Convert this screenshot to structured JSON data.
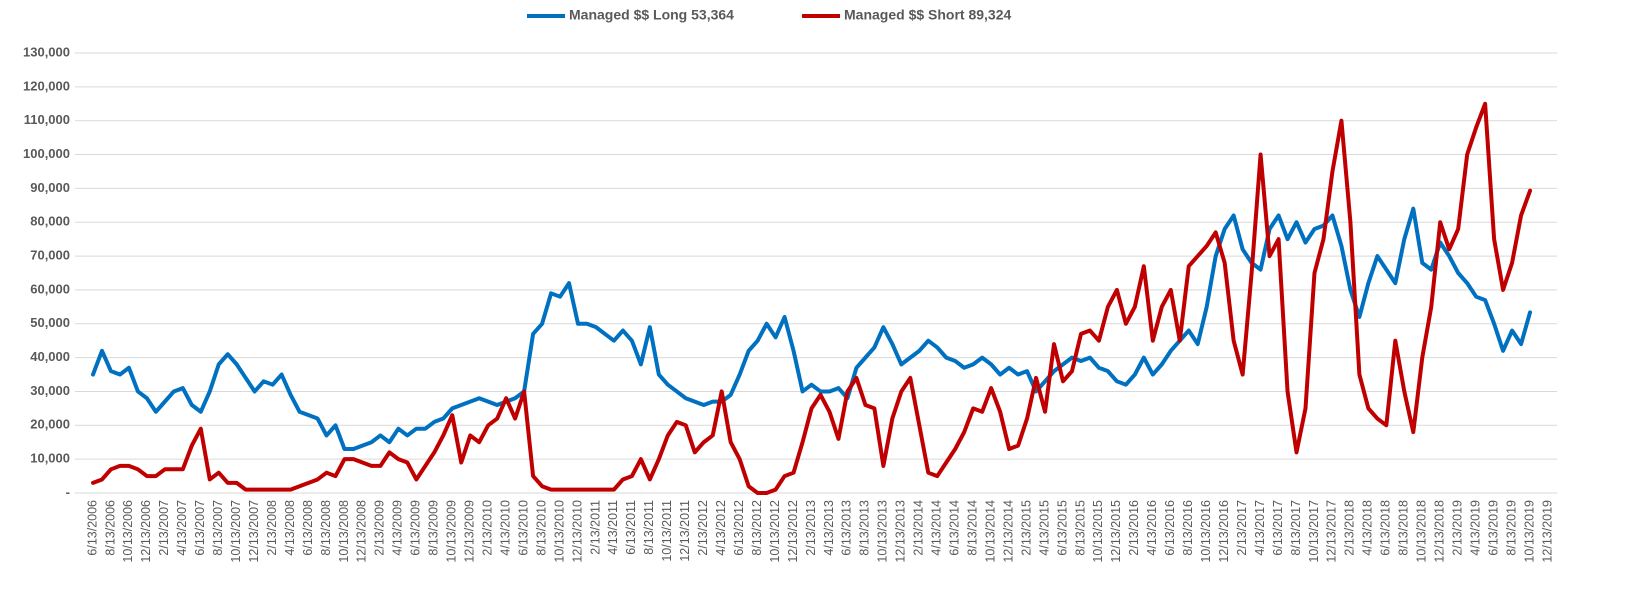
{
  "chart_data": {
    "type": "line",
    "categories": [
      "6/13/2006",
      null,
      "8/13/2006",
      null,
      "10/13/2006",
      null,
      "12/13/2006",
      null,
      "2/13/2007",
      null,
      "4/13/2007",
      null,
      "6/13/2007",
      null,
      "8/13/2007",
      null,
      "10/13/2007",
      null,
      "12/13/2007",
      null,
      "2/13/2008",
      null,
      "4/13/2008",
      null,
      "6/13/2008",
      null,
      "8/13/2008",
      null,
      "10/13/2008",
      null,
      "12/13/2008",
      null,
      "2/13/2009",
      null,
      "4/13/2009",
      null,
      "6/13/2009",
      null,
      "8/13/2009",
      null,
      "10/13/2009",
      null,
      "12/13/2009",
      null,
      "2/13/2010",
      null,
      "4/13/2010",
      null,
      "6/13/2010",
      null,
      "8/13/2010",
      null,
      "10/13/2010",
      null,
      "12/13/2010",
      null,
      "2/13/2011",
      null,
      "4/13/2011",
      null,
      "6/13/2011",
      null,
      "8/13/2011",
      null,
      "10/13/2011",
      null,
      "12/13/2011",
      null,
      "2/13/2012",
      null,
      "4/13/2012",
      null,
      "6/13/2012",
      null,
      "8/13/2012",
      null,
      "10/13/2012",
      null,
      "12/13/2012",
      null,
      "2/13/2013",
      null,
      "4/13/2013",
      null,
      "6/13/2013",
      null,
      "8/13/2013",
      null,
      "10/13/2013",
      null,
      "12/13/2013",
      null,
      "2/13/2014",
      null,
      "4/13/2014",
      null,
      "6/13/2014",
      null,
      "8/13/2014",
      null,
      "10/13/2014",
      null,
      "12/13/2014",
      null,
      "2/13/2015",
      null,
      "4/13/2015",
      null,
      "6/13/2015",
      null,
      "8/13/2015",
      null,
      "10/13/2015",
      null,
      "12/13/2015",
      null,
      "2/13/2016",
      null,
      "4/13/2016",
      null,
      "6/13/2016",
      null,
      "8/13/2016",
      null,
      "10/13/2016",
      null,
      "12/13/2016",
      null,
      "2/13/2017",
      null,
      "4/13/2017",
      null,
      "6/13/2017",
      null,
      "8/13/2017",
      null,
      "10/13/2017",
      null,
      "12/13/2017",
      null,
      "2/13/2018",
      null,
      "4/13/2018",
      null,
      "6/13/2018",
      null,
      "8/13/2018",
      null,
      "10/13/2018",
      null,
      "12/13/2018",
      null,
      "2/13/2019",
      null,
      "4/13/2019",
      null,
      "6/13/2019",
      null,
      "8/13/2019",
      null,
      "10/13/2019",
      null,
      "12/13/2019"
    ],
    "series": [
      {
        "name": "Managed $$ Long 53,364",
        "color": "#0070c0",
        "values": [
          35000,
          42000,
          36000,
          35000,
          37000,
          30000,
          28000,
          24000,
          27000,
          30000,
          31000,
          26000,
          24000,
          30000,
          38000,
          41000,
          38000,
          34000,
          30000,
          33000,
          32000,
          35000,
          29000,
          24000,
          23000,
          22000,
          17000,
          20000,
          13000,
          13000,
          14000,
          15000,
          17000,
          15000,
          19000,
          17000,
          19000,
          19000,
          21000,
          22000,
          25000,
          26000,
          27000,
          28000,
          27000,
          26000,
          27000,
          28000,
          30000,
          47000,
          50000,
          59000,
          58000,
          62000,
          50000,
          50000,
          49000,
          47000,
          45000,
          48000,
          45000,
          38000,
          49000,
          35000,
          32000,
          30000,
          28000,
          27000,
          26000,
          27000,
          27000,
          29000,
          35000,
          42000,
          45000,
          50000,
          46000,
          52000,
          42000,
          30000,
          32000,
          30000,
          30000,
          31000,
          28000,
          37000,
          40000,
          43000,
          49000,
          44000,
          38000,
          40000,
          42000,
          45000,
          43000,
          40000,
          39000,
          37000,
          38000,
          40000,
          38000,
          35000,
          37000,
          35000,
          36000,
          30000,
          33000,
          36000,
          38000,
          40000,
          39000,
          40000,
          37000,
          36000,
          33000,
          32000,
          35000,
          40000,
          35000,
          38000,
          42000,
          45000,
          48000,
          44000,
          55000,
          70000,
          78000,
          82000,
          72000,
          68000,
          66000,
          78000,
          82000,
          75000,
          80000,
          74000,
          78000,
          79000,
          82000,
          73000,
          60000,
          52000,
          62000,
          70000,
          66000,
          62000,
          75000,
          84000,
          68000,
          66000,
          74000,
          70000,
          65000,
          62000,
          58000,
          57000,
          50000,
          42000,
          48000,
          44000,
          53364,
          null,
          null
        ]
      },
      {
        "name": "Managed $$ Short 89,324",
        "color": "#c00000",
        "values": [
          3000,
          4000,
          7000,
          8000,
          8000,
          7000,
          5000,
          5000,
          7000,
          7000,
          7000,
          14000,
          19000,
          4000,
          6000,
          3000,
          3000,
          1000,
          1000,
          1000,
          1000,
          1000,
          1000,
          2000,
          3000,
          4000,
          6000,
          5000,
          10000,
          10000,
          9000,
          8000,
          8000,
          12000,
          10000,
          9000,
          4000,
          8000,
          12000,
          17000,
          23000,
          9000,
          17000,
          15000,
          20000,
          22000,
          28000,
          22000,
          30000,
          5000,
          2000,
          1000,
          1000,
          1000,
          1000,
          1000,
          1000,
          1000,
          1000,
          4000,
          5000,
          10000,
          4000,
          10000,
          17000,
          21000,
          20000,
          12000,
          15000,
          17000,
          30000,
          15000,
          10000,
          2000,
          0,
          0,
          1000,
          5000,
          6000,
          15000,
          25000,
          29000,
          24000,
          16000,
          30000,
          34000,
          26000,
          25000,
          8000,
          22000,
          30000,
          34000,
          20000,
          6000,
          5000,
          9000,
          13000,
          18000,
          25000,
          24000,
          31000,
          24000,
          13000,
          14000,
          22000,
          34000,
          24000,
          44000,
          33000,
          36000,
          47000,
          48000,
          45000,
          55000,
          60000,
          50000,
          55000,
          67000,
          45000,
          55000,
          60000,
          45000,
          67000,
          70000,
          73000,
          77000,
          68000,
          45000,
          35000,
          65000,
          100000,
          70000,
          75000,
          30000,
          12000,
          25000,
          65000,
          75000,
          95000,
          110000,
          80000,
          35000,
          25000,
          22000,
          20000,
          45000,
          30000,
          18000,
          40000,
          55000,
          80000,
          72000,
          78000,
          100000,
          108000,
          115000,
          75000,
          60000,
          68000,
          82000,
          89324,
          null,
          null
        ]
      }
    ],
    "ylim": [
      0,
      130000
    ],
    "yticks": [
      {
        "value": 0,
        "label": "-"
      },
      {
        "value": 10000,
        "label": "10,000"
      },
      {
        "value": 20000,
        "label": "20,000"
      },
      {
        "value": 30000,
        "label": "30,000"
      },
      {
        "value": 40000,
        "label": "40,000"
      },
      {
        "value": 50000,
        "label": "50,000"
      },
      {
        "value": 60000,
        "label": "60,000"
      },
      {
        "value": 70000,
        "label": "70,000"
      },
      {
        "value": 80000,
        "label": "80,000"
      },
      {
        "value": 90000,
        "label": "90,000"
      },
      {
        "value": 100000,
        "label": "100,000"
      },
      {
        "value": 110000,
        "label": "110,000"
      },
      {
        "value": 120000,
        "label": "120,000"
      },
      {
        "value": 130000,
        "label": "130,000"
      }
    ],
    "grid": true
  }
}
